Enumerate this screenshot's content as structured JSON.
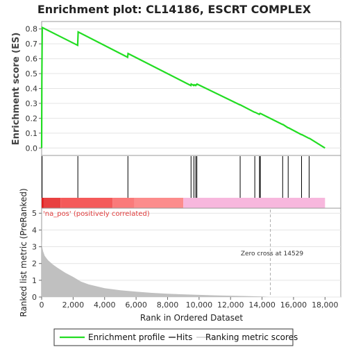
{
  "title": "Enrichment plot: CL14186, ESCRT COMPLEX",
  "colors": {
    "es_line": "#22dd22",
    "hit_line": "#000000",
    "metric_fill": "#c0c0c0",
    "pos_label": "#e03c3c",
    "zero_cross_line": "#aaaaaa",
    "heatmap": [
      "#e02020",
      "#e84040",
      "#f45a5a",
      "#fa7a7a",
      "#fc8c8c",
      "#f7b7dd"
    ]
  },
  "legend": {
    "items": [
      {
        "label": "Enrichment profile",
        "color": "#22dd22"
      },
      {
        "label": "Hits",
        "color": "#000000"
      },
      {
        "label": "Ranking metric scores",
        "color": "#c0c0c0"
      }
    ]
  },
  "chart_data": [
    {
      "type": "line",
      "panel": "enrichment-profile",
      "ylabel": "Enrichment score (ES)",
      "xlim": [
        0,
        19000
      ],
      "ylim": [
        -0.05,
        0.85
      ],
      "yticks": [
        "0.0",
        "0.1",
        "0.2",
        "0.3",
        "0.4",
        "0.5",
        "0.6",
        "0.7",
        "0.8"
      ],
      "series": [
        {
          "name": "Enrichment profile",
          "x": [
            0,
            15,
            25,
            40,
            2290,
            2320,
            5460,
            5490,
            9480,
            9500,
            9660,
            9680,
            9780,
            9800,
            9850,
            9870,
            12600,
            12620,
            13530,
            13560,
            13830,
            13860,
            13880,
            13900,
            15300,
            15330,
            15650,
            15680,
            16500,
            16530,
            16980,
            17010,
            18000
          ],
          "y": [
            0.0,
            0.46,
            0.65,
            0.81,
            0.69,
            0.78,
            0.61,
            0.635,
            0.42,
            0.43,
            0.42,
            0.425,
            0.42,
            0.425,
            0.425,
            0.43,
            0.29,
            0.29,
            0.24,
            0.24,
            0.226,
            0.232,
            0.232,
            0.232,
            0.158,
            0.158,
            0.136,
            0.136,
            0.09,
            0.09,
            0.065,
            0.065,
            0.0
          ]
        }
      ]
    },
    {
      "type": "scatter",
      "panel": "hits",
      "name": "Hits",
      "hit_ranks": [
        30,
        2300,
        5480,
        9490,
        9670,
        9790,
        9860,
        12610,
        13540,
        13840,
        13890,
        15310,
        15660,
        16510,
        16990
      ]
    },
    {
      "type": "heatmap",
      "panel": "ranked-list-heatmap",
      "segments": [
        {
          "from": 0,
          "to": 130,
          "color": "#e02020"
        },
        {
          "from": 130,
          "to": 1200,
          "color": "#e84040"
        },
        {
          "from": 1200,
          "to": 4500,
          "color": "#f45a5a"
        },
        {
          "from": 4500,
          "to": 5900,
          "color": "#fa7a7a"
        },
        {
          "from": 5900,
          "to": 9000,
          "color": "#fc8c8c"
        },
        {
          "from": 9000,
          "to": 18000,
          "color": "#f7b7dd"
        }
      ]
    },
    {
      "type": "area",
      "panel": "ranked-list-metric",
      "name": "Ranking metric scores",
      "xlabel": "Rank in Ordered Dataset",
      "ylabel": "Ranked list metric (PreRanked)",
      "xlim": [
        0,
        19000
      ],
      "ylim": [
        0,
        5.3
      ],
      "xticks": [
        "0",
        "2,000",
        "4,000",
        "6,000",
        "8,000",
        "10,000",
        "12,000",
        "14,000",
        "16,000",
        "18,000"
      ],
      "yticks": [
        "0",
        "1",
        "2",
        "3",
        "4",
        "5"
      ],
      "x": [
        0,
        30,
        100,
        200,
        400,
        700,
        1000,
        1500,
        2000,
        2500,
        3000,
        4000,
        5000,
        6000,
        7000,
        8000,
        9000,
        10000,
        11000,
        12000,
        13000,
        14000,
        14529,
        15000,
        16000,
        17000,
        18000
      ],
      "y": [
        3.45,
        3.0,
        2.7,
        2.45,
        2.2,
        1.95,
        1.75,
        1.45,
        1.2,
        0.92,
        0.75,
        0.53,
        0.4,
        0.32,
        0.25,
        0.2,
        0.16,
        0.13,
        0.1,
        0.08,
        0.06,
        0.03,
        0.0,
        0.0,
        0.0,
        0.0,
        0.0
      ],
      "annotations": {
        "positive_label": "'na_pos' (positively correlated)",
        "zero_cross_label": "Zero cross at 14529",
        "zero_cross_rank": 14529
      }
    }
  ]
}
